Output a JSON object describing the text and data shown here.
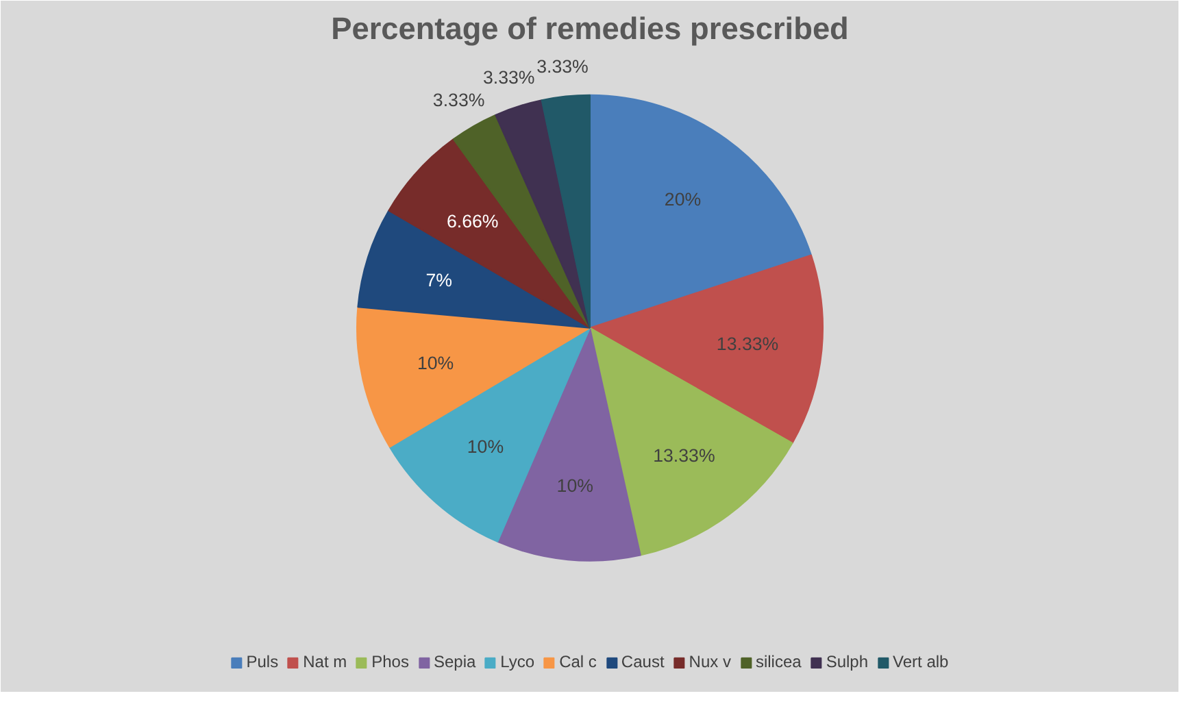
{
  "chart_data": {
    "type": "pie",
    "title": "Percentage of remedies prescribed",
    "categories": [
      "Puls",
      "Nat m",
      "Phos",
      "Sepia",
      "Lyco",
      "Cal c",
      "Caust",
      "Nux v",
      "silicea",
      "Sulph",
      "Vert alb"
    ],
    "values": [
      20,
      13.33,
      13.33,
      10,
      10,
      10,
      7,
      6.66,
      3.33,
      3.33,
      3.33
    ],
    "value_labels": [
      "20%",
      "13.33%",
      "13.33%",
      "10%",
      "10%",
      "10%",
      "7%",
      "6.66%",
      "3.33%",
      "3.33%",
      "3.33%"
    ],
    "colors": [
      "#4a7ebb",
      "#c0504d",
      "#9bbb59",
      "#8064a2",
      "#4bacc6",
      "#f79646",
      "#1f497d",
      "#772c2a",
      "#4f6228",
      "#403151",
      "#215968"
    ],
    "legend": "bottom"
  }
}
